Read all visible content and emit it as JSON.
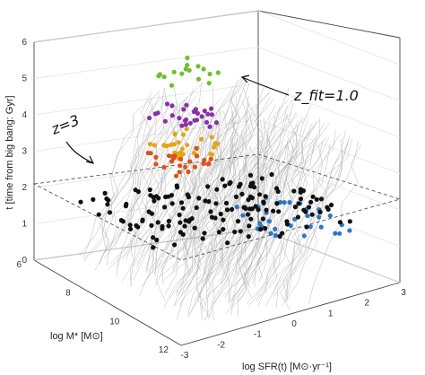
{
  "chart_data": {
    "type": "scatter",
    "projection": "3d",
    "title": "",
    "xlabel": "log SFR(t) [M⊙·yr⁻¹]",
    "ylabel": "log M* [M⊙]",
    "zlabel": "t [time from big bang: Gyr]",
    "xlim": [
      -3,
      3
    ],
    "ylim": [
      6,
      12
    ],
    "zlim": [
      0,
      6
    ],
    "x_ticks": [
      "-3",
      "-2",
      "-1",
      "0",
      "1",
      "2",
      "3"
    ],
    "y_ticks": [
      "6",
      "8",
      "10",
      "12"
    ],
    "z_ticks": [
      "0",
      "1",
      "2",
      "3",
      "4",
      "5",
      "6"
    ],
    "grid": true,
    "annotations": [
      "z=3",
      "z_fit=1.0"
    ],
    "series": [
      {
        "color": "#6fbf2f",
        "t": 5.3,
        "count": 16
      },
      {
        "color": "#8b2fa6",
        "t": 4.1,
        "count": 28
      },
      {
        "color": "#e6a414",
        "t": 3.3,
        "count": 30
      },
      {
        "color": "#d9541a",
        "t": 2.9,
        "count": 26
      },
      {
        "color": "#2f77c2",
        "t": 2.0,
        "count": 34
      },
      {
        "color": "#111111",
        "t": 2.0,
        "count": 150
      }
    ]
  }
}
